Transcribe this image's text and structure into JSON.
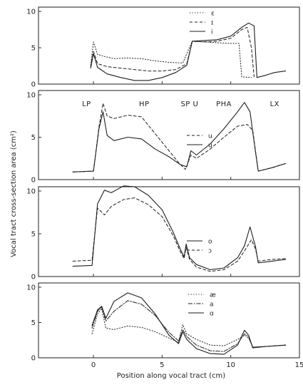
{
  "colors": {
    "ink": "#1e1e1e",
    "frame": "#333333",
    "background": "#ffffff"
  },
  "chart_data": {
    "type": "line",
    "xlabel": "Position along vocal tract (cm)",
    "ylabel": "Vocal tract cross-section area (cm²)",
    "xlim": [
      -4,
      15
    ],
    "ylim": [
      0,
      10
    ],
    "x_ticks": [
      0,
      5,
      10,
      15
    ],
    "x_tick_labels": [
      "0",
      "5",
      "10",
      "15"
    ],
    "y_ticks": [
      0,
      5,
      10
    ],
    "y_tick_labels": [
      "0",
      "5",
      "10"
    ],
    "panels": [
      {
        "legend": [
          {
            "label": "ε",
            "style": "dotted"
          },
          {
            "label": "ɪ",
            "style": "dashed"
          },
          {
            "label": "i",
            "style": "solid"
          }
        ],
        "series": [
          {
            "name": "ε",
            "style": "dotted",
            "points": [
              [
                -0.2,
                2.6
              ],
              [
                0,
                5.8
              ],
              [
                0.3,
                4.1
              ],
              [
                0.8,
                3.8
              ],
              [
                1.5,
                3.5
              ],
              [
                2.5,
                3.6
              ],
              [
                3.5,
                3.5
              ],
              [
                4.5,
                3.2
              ],
              [
                5.5,
                3.0
              ],
              [
                6.5,
                2.9
              ],
              [
                7.2,
                5.9
              ],
              [
                8,
                5.8
              ],
              [
                9,
                5.7
              ],
              [
                10,
                5.6
              ],
              [
                10.6,
                5.6
              ],
              [
                10.8,
                1.0
              ],
              [
                11.5,
                0.9
              ]
            ]
          },
          {
            "name": "ɪ",
            "style": "dashed",
            "points": [
              [
                -0.2,
                2.4
              ],
              [
                0,
                4.5
              ],
              [
                0.3,
                2.8
              ],
              [
                1,
                2.4
              ],
              [
                2,
                2.2
              ],
              [
                3,
                2.0
              ],
              [
                4,
                1.8
              ],
              [
                5,
                1.8
              ],
              [
                6,
                2.0
              ],
              [
                6.8,
                2.8
              ],
              [
                7.2,
                5.9
              ],
              [
                8,
                5.8
              ],
              [
                9,
                5.9
              ],
              [
                10,
                6.3
              ],
              [
                10.8,
                7.5
              ],
              [
                11.2,
                7.8
              ],
              [
                11.5,
                5.0
              ],
              [
                11.7,
                1.0
              ]
            ]
          },
          {
            "name": "i",
            "style": "solid",
            "points": [
              [
                -0.2,
                2.2
              ],
              [
                0,
                4.2
              ],
              [
                0.3,
                2.3
              ],
              [
                1,
                1.4
              ],
              [
                2,
                0.9
              ],
              [
                3,
                0.5
              ],
              [
                4,
                0.5
              ],
              [
                5,
                0.9
              ],
              [
                6,
                1.6
              ],
              [
                6.8,
                2.6
              ],
              [
                7.2,
                5.9
              ],
              [
                8,
                6.0
              ],
              [
                9,
                6.1
              ],
              [
                10,
                6.6
              ],
              [
                10.8,
                7.8
              ],
              [
                11.3,
                8.4
              ],
              [
                11.7,
                8.0
              ],
              [
                11.9,
                1.0
              ]
            ]
          },
          {
            "name": "",
            "style": "solid",
            "points": [
              [
                11.9,
                0.9
              ],
              [
                12.5,
                1.2
              ],
              [
                13.2,
                1.6
              ],
              [
                14,
                1.8
              ]
            ]
          }
        ]
      },
      {
        "region_labels": [
          "LP",
          "HP",
          "SP U",
          "PHA",
          "LX"
        ],
        "legend": [
          {
            "label": "u",
            "style": "dashed"
          },
          {
            "label": "u",
            "style": "solid"
          }
        ],
        "series": [
          {
            "name": "u",
            "style": "dashed",
            "points": [
              [
                -1.5,
                0.9
              ],
              [
                0,
                1.0
              ],
              [
                0.4,
                6.2
              ],
              [
                0.7,
                9.0
              ],
              [
                1.0,
                7.5
              ],
              [
                1.5,
                7.2
              ],
              [
                2.5,
                7.6
              ],
              [
                3.5,
                7.4
              ],
              [
                4.5,
                5.4
              ],
              [
                5.5,
                3.4
              ],
              [
                6.2,
                2.0
              ],
              [
                6.7,
                1.2
              ],
              [
                7.1,
                2.9
              ],
              [
                7.5,
                2.5
              ],
              [
                8.5,
                3.6
              ],
              [
                9.5,
                5.0
              ],
              [
                10.5,
                6.3
              ],
              [
                11.2,
                6.5
              ],
              [
                11.6,
                5.8
              ],
              [
                12.0,
                1.0
              ],
              [
                13.0,
                1.4
              ],
              [
                14.0,
                1.9
              ]
            ]
          },
          {
            "name": "u",
            "style": "solid",
            "points": [
              [
                -1.5,
                0.9
              ],
              [
                0,
                1.0
              ],
              [
                0.4,
                6.0
              ],
              [
                0.7,
                8.0
              ],
              [
                1.0,
                5.2
              ],
              [
                1.5,
                4.6
              ],
              [
                2.5,
                5.0
              ],
              [
                3.5,
                4.8
              ],
              [
                4.5,
                3.6
              ],
              [
                5.5,
                2.7
              ],
              [
                6.3,
                1.8
              ],
              [
                6.8,
                1.5
              ],
              [
                7.1,
                3.4
              ],
              [
                7.5,
                2.9
              ],
              [
                8.5,
                4.2
              ],
              [
                9.5,
                6.0
              ],
              [
                10.5,
                8.0
              ],
              [
                11.0,
                9.1
              ],
              [
                11.4,
                8.0
              ],
              [
                11.6,
                5.6
              ],
              [
                12.0,
                1.0
              ],
              [
                13.0,
                1.4
              ],
              [
                14.0,
                1.9
              ]
            ]
          }
        ]
      },
      {
        "legend": [
          {
            "label": "o",
            "style": "solid"
          },
          {
            "label": "ɔ",
            "style": "dashed"
          }
        ],
        "series": [
          {
            "name": "o",
            "style": "solid",
            "points": [
              [
                -1.5,
                1.2
              ],
              [
                -0.1,
                1.3
              ],
              [
                0.3,
                8.5
              ],
              [
                0.8,
                10.1
              ],
              [
                1.3,
                9.8
              ],
              [
                2.2,
                10.6
              ],
              [
                3.0,
                10.5
              ],
              [
                4.0,
                9.5
              ],
              [
                5.0,
                7.8
              ],
              [
                5.8,
                5.2
              ],
              [
                6.3,
                3.3
              ],
              [
                6.6,
                2.3
              ],
              [
                6.75,
                3.8
              ],
              [
                7.0,
                2.2
              ],
              [
                7.5,
                1.4
              ],
              [
                8.5,
                0.8
              ],
              [
                9.5,
                1.0
              ],
              [
                10.5,
                2.2
              ],
              [
                11.0,
                3.6
              ],
              [
                11.4,
                5.8
              ],
              [
                11.8,
                3.5
              ],
              [
                12.0,
                1.6
              ],
              [
                13.0,
                1.8
              ],
              [
                14.0,
                2.0
              ]
            ]
          },
          {
            "name": "ɔ",
            "style": "dashed",
            "points": [
              [
                -1.5,
                1.8
              ],
              [
                -0.1,
                1.9
              ],
              [
                0.3,
                8.0
              ],
              [
                0.8,
                7.2
              ],
              [
                1.3,
                8.2
              ],
              [
                2.2,
                9.0
              ],
              [
                3.0,
                9.2
              ],
              [
                4.0,
                8.4
              ],
              [
                5.0,
                7.0
              ],
              [
                5.8,
                4.8
              ],
              [
                6.3,
                3.0
              ],
              [
                6.6,
                2.1
              ],
              [
                6.75,
                3.4
              ],
              [
                7.0,
                2.0
              ],
              [
                7.5,
                1.1
              ],
              [
                8.5,
                0.6
              ],
              [
                9.5,
                0.8
              ],
              [
                10.5,
                1.8
              ],
              [
                11.0,
                3.0
              ],
              [
                11.5,
                4.3
              ],
              [
                11.8,
                3.2
              ],
              [
                12.0,
                1.8
              ],
              [
                13.0,
                2.0
              ],
              [
                14.0,
                2.1
              ]
            ]
          }
        ]
      },
      {
        "legend": [
          {
            "label": "æ",
            "style": "dotted"
          },
          {
            "label": "a",
            "style": "dashdot"
          },
          {
            "label": "ɑ",
            "style": "solid"
          }
        ],
        "series": [
          {
            "name": "æ",
            "style": "dotted",
            "points": [
              [
                -0.1,
                3.4
              ],
              [
                0.3,
                6.2
              ],
              [
                0.6,
                7.0
              ],
              [
                0.9,
                4.2
              ],
              [
                1.5,
                4.0
              ],
              [
                2.5,
                4.5
              ],
              [
                3.5,
                4.3
              ],
              [
                4.5,
                3.7
              ],
              [
                5.5,
                2.8
              ],
              [
                6.2,
                2.2
              ],
              [
                6.5,
                4.7
              ],
              [
                6.8,
                3.4
              ],
              [
                7.5,
                2.6
              ],
              [
                8.5,
                1.8
              ],
              [
                9.5,
                1.7
              ],
              [
                10.5,
                2.6
              ],
              [
                11.0,
                3.2
              ],
              [
                11.3,
                2.8
              ],
              [
                11.6,
                1.5
              ],
              [
                12.5,
                1.6
              ],
              [
                14.0,
                1.8
              ]
            ]
          },
          {
            "name": "a",
            "style": "dashdot",
            "points": [
              [
                -0.1,
                4.2
              ],
              [
                0.3,
                6.6
              ],
              [
                0.6,
                7.2
              ],
              [
                0.9,
                5.2
              ],
              [
                1.5,
                6.6
              ],
              [
                2.5,
                8.1
              ],
              [
                3.5,
                7.6
              ],
              [
                4.5,
                6.0
              ],
              [
                5.5,
                3.6
              ],
              [
                6.2,
                2.4
              ],
              [
                6.5,
                4.0
              ],
              [
                6.8,
                3.0
              ],
              [
                7.5,
                1.8
              ],
              [
                8.5,
                1.0
              ],
              [
                9.5,
                0.9
              ],
              [
                10.5,
                2.0
              ],
              [
                11.0,
                3.4
              ],
              [
                11.3,
                3.0
              ],
              [
                11.6,
                1.5
              ],
              [
                12.5,
                1.6
              ],
              [
                14.0,
                1.8
              ]
            ]
          },
          {
            "name": "ɑ",
            "style": "solid",
            "points": [
              [
                -0.1,
                4.6
              ],
              [
                0.3,
                6.8
              ],
              [
                0.6,
                7.3
              ],
              [
                0.9,
                5.6
              ],
              [
                1.5,
                8.0
              ],
              [
                2.5,
                9.2
              ],
              [
                3.5,
                8.5
              ],
              [
                4.5,
                6.2
              ],
              [
                5.5,
                3.2
              ],
              [
                6.2,
                2.0
              ],
              [
                6.5,
                3.7
              ],
              [
                6.8,
                2.6
              ],
              [
                7.5,
                1.3
              ],
              [
                8.5,
                0.6
              ],
              [
                9.5,
                0.5
              ],
              [
                10.5,
                1.8
              ],
              [
                11.0,
                3.9
              ],
              [
                11.3,
                3.2
              ],
              [
                11.6,
                1.4
              ],
              [
                12.5,
                1.6
              ],
              [
                14.0,
                1.8
              ]
            ]
          }
        ]
      }
    ]
  }
}
